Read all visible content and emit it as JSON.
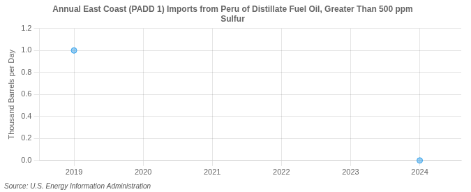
{
  "chart_data": {
    "type": "scatter",
    "title": "Annual East Coast (PADD 1) Imports from Peru of Distillate Fuel Oil, Greater Than 500 ppm\nSulfur",
    "y_label": "Thousand Barrels per Day",
    "annotations": [
      "Source: U.S. Energy Information Administration"
    ],
    "x": [
      2019,
      2024
    ],
    "values": [
      1.0,
      0.0
    ],
    "xlim": [
      2018.5,
      2024.6
    ],
    "ylim": [
      0.0,
      1.2
    ],
    "xticks": [
      2019,
      2020,
      2021,
      2022,
      2023,
      2024
    ],
    "yticks": [
      {
        "value": 0.0,
        "label": "0.0"
      },
      0.2,
      0.4,
      0.6,
      0.8,
      {
        "value": 1.0,
        "label": "1.0"
      },
      1.2
    ],
    "grid": true
  }
}
